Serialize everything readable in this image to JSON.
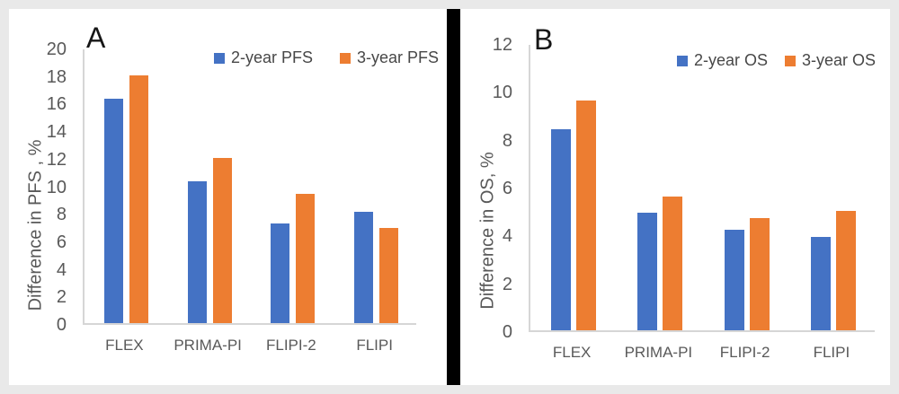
{
  "figure": {
    "background_color": "#e9e9e9",
    "panel_color": "#ffffff",
    "divider_color": "#000000",
    "axis_text_color": "#595959",
    "panels": [
      {
        "label": "A"
      },
      {
        "label": "B"
      }
    ]
  },
  "chart_data": [
    {
      "type": "bar",
      "panel_label": "A",
      "title": "",
      "xlabel": "",
      "ylabel": "Difference in PFS , %",
      "categories": [
        "FLEX",
        "PRIMA-PI",
        "FLIPI-2",
        "FLIPI"
      ],
      "series": [
        {
          "name": "2-year PFS",
          "color": "#4472C4",
          "values": [
            16.3,
            10.3,
            7.2,
            8.1
          ]
        },
        {
          "name": "3-year PFS",
          "color": "#ED7D31",
          "values": [
            18.0,
            12.0,
            9.4,
            6.9
          ]
        }
      ],
      "ylim": [
        0,
        20
      ],
      "yticks": [
        0,
        2,
        4,
        6,
        8,
        10,
        12,
        14,
        16,
        18,
        20
      ],
      "grid": false,
      "legend_position": "top-inside"
    },
    {
      "type": "bar",
      "panel_label": "B",
      "title": "",
      "xlabel": "",
      "ylabel": "Difference in OS, %",
      "categories": [
        "FLEX",
        "PRIMA-PI",
        "FLIPI-2",
        "FLIPI"
      ],
      "series": [
        {
          "name": "2-year OS",
          "color": "#4472C4",
          "values": [
            8.4,
            4.9,
            4.2,
            3.9
          ]
        },
        {
          "name": "3-year OS",
          "color": "#ED7D31",
          "values": [
            9.6,
            5.6,
            4.7,
            5.0
          ]
        }
      ],
      "ylim": [
        0,
        12
      ],
      "yticks": [
        0,
        2,
        4,
        6,
        8,
        10,
        12
      ],
      "grid": false,
      "legend_position": "top-inside"
    }
  ]
}
